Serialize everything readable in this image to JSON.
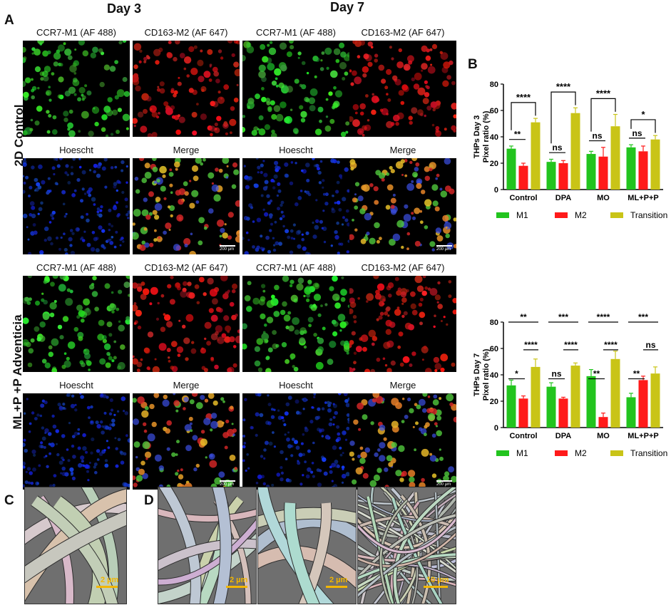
{
  "panels": {
    "A": "A",
    "B": "B",
    "C": "C",
    "D": "D"
  },
  "days": {
    "day3": "Day 3",
    "day7": "Day 7"
  },
  "rows": {
    "control": "2D Control",
    "adventicia": "ML+P +P Adventicia"
  },
  "channels": {
    "ccr7": "CCR7-M1 (AF 488)",
    "cd163": "CD163-M2 (AF 647)",
    "hoescht": "Hoescht",
    "merge": "Merge"
  },
  "scalebars": {
    "fluor": "200 µm",
    "sem1": "2 µm",
    "sem2": "10 µm"
  },
  "colors": {
    "M1": "#22c41e",
    "M2": "#ff1a1a",
    "Transition": "#c9c417"
  },
  "chart_data": [
    {
      "type": "bar",
      "ylabel_line1": "THPs Day 3",
      "ylabel_line2": "Pixel ratio (%)",
      "categories": [
        "Control",
        "DPA",
        "MO",
        "ML+P+P"
      ],
      "ylim": [
        0,
        80
      ],
      "yticks": [
        "0",
        "20",
        "40",
        "60",
        "80"
      ],
      "series": [
        {
          "name": "M1",
          "values": [
            31,
            21,
            27,
            32
          ],
          "errors": [
            2,
            2,
            2,
            2
          ]
        },
        {
          "name": "M2",
          "values": [
            18,
            20,
            25,
            29
          ],
          "errors": [
            2,
            2,
            7,
            4
          ]
        },
        {
          "name": "Transition",
          "values": [
            51,
            58,
            48,
            38
          ],
          "errors": [
            3,
            4,
            9,
            3
          ]
        }
      ],
      "significance": [
        {
          "label": "**",
          "from": 0,
          "to": 1
        },
        {
          "label": "****",
          "from": 0,
          "to": 2
        },
        {
          "label": "ns",
          "from": 0,
          "to": 1
        },
        {
          "label": "****",
          "from": 0,
          "to": 2
        },
        {
          "label": "ns",
          "from": 0,
          "to": 1
        },
        {
          "label": "****",
          "from": 0,
          "to": 2
        },
        {
          "label": "ns",
          "from": 0,
          "to": 1
        },
        {
          "label": "*",
          "from": 0,
          "to": 2
        }
      ],
      "legend": [
        "M1",
        "M2",
        "Transition"
      ]
    },
    {
      "type": "bar",
      "ylabel_line1": "THPs Day 7",
      "ylabel_line2": "Pixel ratio (%)",
      "categories": [
        "Control",
        "DPA",
        "MO",
        "ML+P+P"
      ],
      "ylim": [
        0,
        80
      ],
      "yticks": [
        "0",
        "20",
        "40",
        "60",
        "80"
      ],
      "series": [
        {
          "name": "M1",
          "values": [
            32,
            31,
            39,
            23
          ],
          "errors": [
            4,
            3,
            5,
            3
          ]
        },
        {
          "name": "M2",
          "values": [
            22,
            22,
            8,
            36
          ],
          "errors": [
            2,
            1,
            3,
            3
          ]
        },
        {
          "name": "Transition",
          "values": [
            46,
            47,
            52,
            41
          ],
          "errors": [
            6,
            2,
            6,
            5
          ]
        }
      ],
      "significance": [
        {
          "label": "**",
          "level": "top"
        },
        {
          "label": "****",
          "level": "mid"
        },
        {
          "label": "*",
          "level": "low"
        },
        {
          "label": "***",
          "level": "top"
        },
        {
          "label": "****",
          "level": "mid"
        },
        {
          "label": "ns",
          "level": "low"
        },
        {
          "label": "****",
          "level": "top"
        },
        {
          "label": "****",
          "level": "mid"
        },
        {
          "label": "**",
          "level": "low"
        },
        {
          "label": "***",
          "level": "top"
        },
        {
          "label": "ns",
          "level": "mid"
        },
        {
          "label": "**",
          "level": "low"
        }
      ],
      "legend": [
        "M1",
        "M2",
        "Transition"
      ]
    }
  ]
}
